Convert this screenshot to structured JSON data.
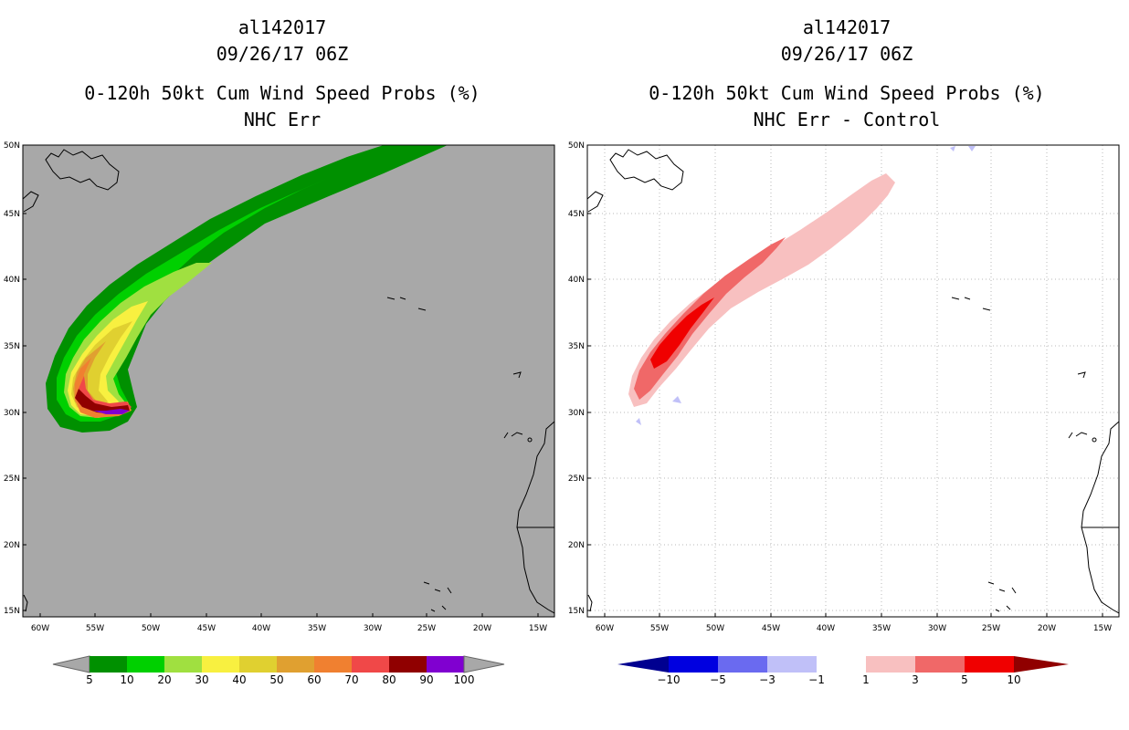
{
  "panels": [
    {
      "storm_id": "al142017",
      "datetime": "09/26/17 06Z",
      "product": "0-120h 50kt Cum Wind Speed Probs (%)",
      "subtitle": "NHC Err",
      "lat_labels": [
        "50N",
        "45N",
        "40N",
        "35N",
        "30N",
        "25N",
        "20N",
        "15N"
      ],
      "lon_labels": [
        "60W",
        "55W",
        "50W",
        "45W",
        "40W",
        "35W",
        "30W",
        "25W",
        "20W",
        "15W"
      ],
      "colorbar": {
        "labels": [
          "5",
          "10",
          "20",
          "30",
          "40",
          "50",
          "60",
          "70",
          "80",
          "90",
          "100"
        ],
        "colors": [
          "#009000",
          "#00d000",
          "#a0e040",
          "#f8f040",
          "#e0d030",
          "#e0a030",
          "#f08030",
          "#f04848",
          "#900000",
          "#8000d0"
        ],
        "end_color": "#a8a8a8"
      }
    },
    {
      "storm_id": "al142017",
      "datetime": "09/26/17 06Z",
      "product": "0-120h 50kt Cum Wind Speed Probs (%)",
      "subtitle": "NHC Err - Control",
      "lat_labels": [
        "50N",
        "45N",
        "40N",
        "35N",
        "30N",
        "25N",
        "20N",
        "15N"
      ],
      "lon_labels": [
        "60W",
        "55W",
        "50W",
        "45W",
        "40W",
        "35W",
        "30W",
        "25W",
        "20W",
        "15W"
      ],
      "colorbar": {
        "labels": [
          "−10",
          "−5",
          "−3",
          "−1",
          "1",
          "3",
          "5",
          "10"
        ],
        "colors": [
          "#0000e0",
          "#6a6af0",
          "#c0c0f8",
          "#ffffff",
          "#f8c0c0",
          "#f06868",
          "#f00000"
        ],
        "low_color": "#000090",
        "high_color": "#900000"
      }
    }
  ]
}
